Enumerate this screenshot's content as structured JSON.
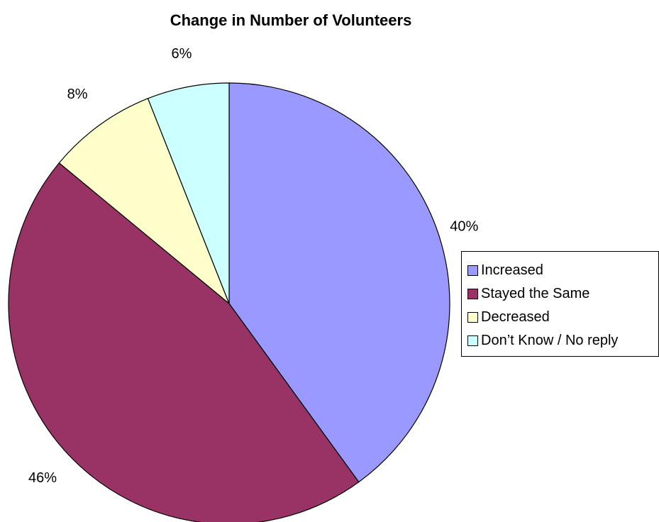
{
  "chart_data": {
    "type": "pie",
    "title": "Change in Number of Volunteers",
    "categories": [
      "Increased",
      "Stayed the Same",
      "Decreased",
      "Don’t Know / No reply"
    ],
    "values": [
      40,
      46,
      8,
      6
    ],
    "labels": [
      "40%",
      "46%",
      "8%",
      "6%"
    ],
    "colors": [
      "#9999FF",
      "#993366",
      "#FFFFCC",
      "#CCFFFF"
    ],
    "legend_position": "right"
  }
}
